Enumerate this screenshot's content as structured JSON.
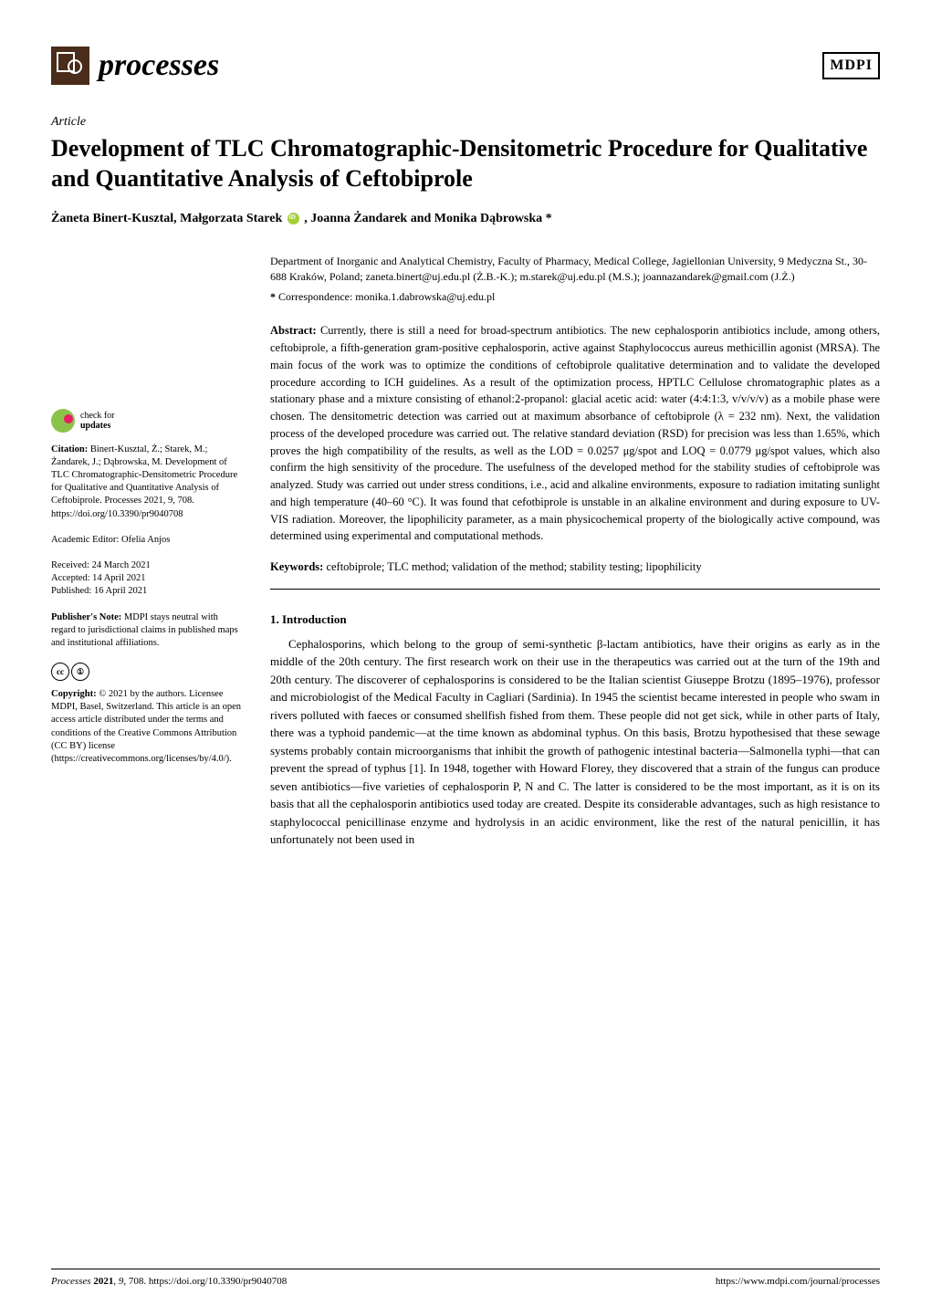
{
  "header": {
    "journal_name": "processes",
    "publisher_logo": "MDPI"
  },
  "article": {
    "type": "Article",
    "title": "Development of TLC Chromatographic-Densitometric Procedure for Qualitative and Quantitative Analysis of Ceftobiprole",
    "authors": "Żaneta Binert-Kusztal, Małgorzata Starek",
    "authors_cont": ", Joanna Żandarek and Monika Dąbrowska *",
    "affiliation": "Department of Inorganic and Analytical Chemistry, Faculty of Pharmacy, Medical College, Jagiellonian University, 9 Medyczna St., 30-688 Kraków, Poland; zaneta.binert@uj.edu.pl (Ż.B.-K.); m.starek@uj.edu.pl (M.S.); joannazandarek@gmail.com (J.Ż.)",
    "correspondence_label": "*",
    "correspondence": "Correspondence: monika.1.dabrowska@uj.edu.pl",
    "abstract_label": "Abstract:",
    "abstract": "Currently, there is still a need for broad-spectrum antibiotics. The new cephalosporin antibiotics include, among others, ceftobiprole, a fifth-generation gram-positive cephalosporin, active against Staphylococcus aureus methicillin agonist (MRSA). The main focus of the work was to optimize the conditions of ceftobiprole qualitative determination and to validate the developed procedure according to ICH guidelines. As a result of the optimization process, HPTLC Cellulose chromatographic plates as a stationary phase and a mixture consisting of ethanol:2-propanol: glacial acetic acid: water (4:4:1:3, v/v/v/v) as a mobile phase were chosen. The densitometric detection was carried out at maximum absorbance of ceftobiprole (λ = 232 nm). Next, the validation process of the developed procedure was carried out. The relative standard deviation (RSD) for precision was less than 1.65%, which proves the high compatibility of the results, as well as the LOD = 0.0257 μg/spot and LOQ = 0.0779 μg/spot values, which also confirm the high sensitivity of the procedure. The usefulness of the developed method for the stability studies of ceftobiprole was analyzed. Study was carried out under stress conditions, i.e., acid and alkaline environments, exposure to radiation imitating sunlight and high temperature (40–60 °C). It was found that cefotbiprole is unstable in an alkaline environment and during exposure to UV-VIS radiation. Moreover, the lipophilicity parameter, as a main physicochemical property of the biologically active compound, was determined using experimental and computational methods.",
    "keywords_label": "Keywords:",
    "keywords": "ceftobiprole; TLC method; validation of the method; stability testing; lipophilicity"
  },
  "sidebar": {
    "check_updates": "check for updates",
    "citation_label": "Citation:",
    "citation": "Binert-Kusztal, Ż.; Starek, M.; Żandarek, J.; Dąbrowska, M. Development of TLC Chromatographic-Densitometric Procedure for Qualitative and Quantitative Analysis of Ceftobiprole. Processes 2021, 9, 708. https://doi.org/10.3390/pr9040708",
    "editor_label": "Academic Editor:",
    "editor": "Ofelia Anjos",
    "received": "Received: 24 March 2021",
    "accepted": "Accepted: 14 April 2021",
    "published": "Published: 16 April 2021",
    "pubnote_label": "Publisher's Note:",
    "pubnote": "MDPI stays neutral with regard to jurisdictional claims in published maps and institutional affiliations.",
    "copyright_label": "Copyright:",
    "copyright": "© 2021 by the authors. Licensee MDPI, Basel, Switzerland. This article is an open access article distributed under the terms and conditions of the Creative Commons Attribution (CC BY) license (https://creativecommons.org/licenses/by/4.0/)."
  },
  "section1": {
    "heading": "1. Introduction",
    "body": "Cephalosporins, which belong to the group of semi-synthetic β-lactam antibiotics, have their origins as early as in the middle of the 20th century. The first research work on their use in the therapeutics was carried out at the turn of the 19th and 20th century. The discoverer of cephalosporins is considered to be the Italian scientist Giuseppe Brotzu (1895–1976), professor and microbiologist of the Medical Faculty in Cagliari (Sardinia). In 1945 the scientist became interested in people who swam in rivers polluted with faeces or consumed shellfish fished from them. These people did not get sick, while in other parts of Italy, there was a typhoid pandemic—at the time known as abdominal typhus. On this basis, Brotzu hypothesised that these sewage systems probably contain microorganisms that inhibit the growth of pathogenic intestinal bacteria—Salmonella typhi—that can prevent the spread of typhus [1]. In 1948, together with Howard Florey, they discovered that a strain of the fungus can produce seven antibiotics—five varieties of cephalosporin P, N and C. The latter is considered to be the most important, as it is on its basis that all the cephalosporin antibiotics used today are created. Despite its considerable advantages, such as high resistance to staphylococcal penicillinase enzyme and hydrolysis in an acidic environment, like the rest of the natural penicillin, it has unfortunately not been used in"
  },
  "footer": {
    "left_journal": "Processes",
    "left_rest": "2021, 9, 708. https://doi.org/10.3390/pr9040708",
    "right": "https://www.mdpi.com/journal/processes"
  }
}
